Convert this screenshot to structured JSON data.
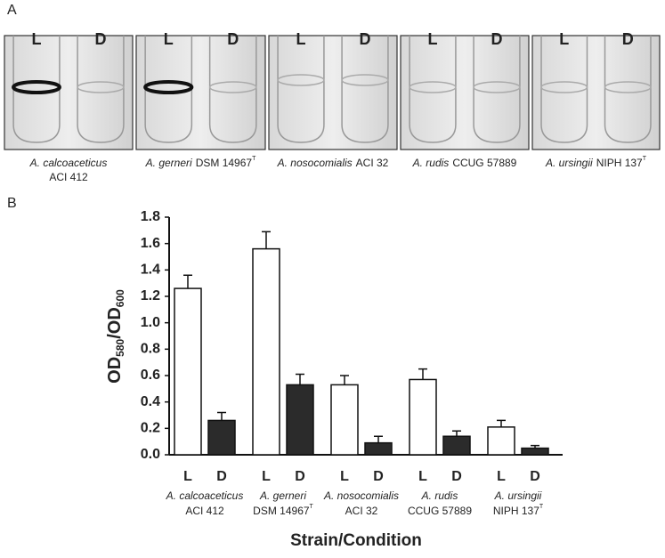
{
  "panel_a": {
    "label": "A",
    "tube_labels": [
      "L",
      "D"
    ]
  },
  "panel_b": {
    "label": "B"
  },
  "chart_data": {
    "type": "bar",
    "categories": [
      {
        "species": "A. calcoaceticus",
        "strain": "ACI 412"
      },
      {
        "species": "A. gerneri",
        "strain": "DSM 14967",
        "superscript": "T"
      },
      {
        "species": "A. nosocomialis",
        "strain": "ACI 32"
      },
      {
        "species": "A. rudis",
        "strain": "CCUG 57889"
      },
      {
        "species": "A. ursingii",
        "strain": "NIPH 137",
        "superscript": "T"
      }
    ],
    "series": [
      {
        "name": "L",
        "color": "#ffffff",
        "values": [
          1.26,
          1.56,
          0.53,
          0.57,
          0.21
        ],
        "errors": [
          0.1,
          0.13,
          0.07,
          0.08,
          0.05
        ]
      },
      {
        "name": "D",
        "color": "#2b2b2b",
        "values": [
          0.26,
          0.53,
          0.09,
          0.14,
          0.05
        ],
        "errors": [
          0.06,
          0.08,
          0.05,
          0.04,
          0.02
        ]
      }
    ],
    "ylabel_parts": [
      "OD",
      "580",
      "/OD",
      "600"
    ],
    "xlabel": "Strain/Condition",
    "ylim": [
      0,
      1.8
    ],
    "yticks": [
      {
        "value": 0,
        "label": "0.0"
      },
      0.2,
      0.4,
      0.6,
      0.8,
      {
        "value": 1,
        "label": "1.0"
      },
      1.2,
      1.4,
      1.6,
      1.8
    ]
  }
}
